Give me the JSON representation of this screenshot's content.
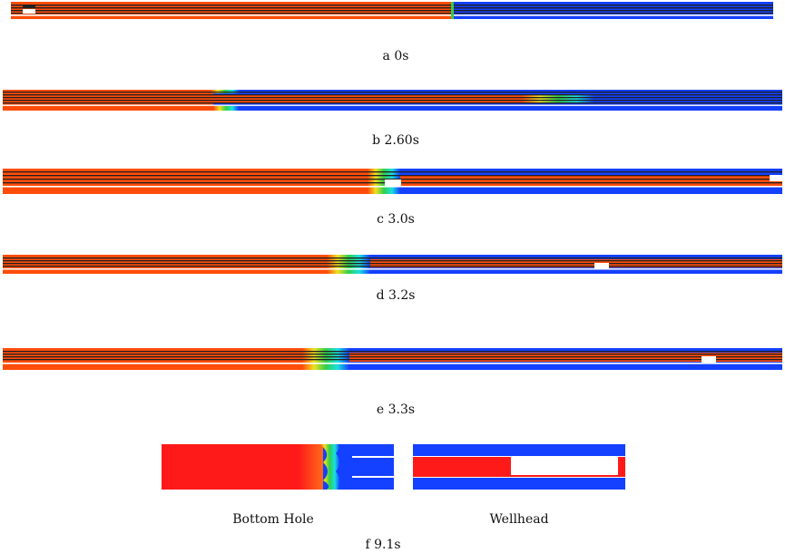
{
  "colors": {
    "hot": "#ff4c0a",
    "cold": "#1440ff",
    "red": "#ff1a1a",
    "dark": "#202020",
    "white": "#ffffff",
    "cyan": "#19e0e0",
    "green": "#2fd04a",
    "yellow": "#f0e020",
    "lightblue": "#3aa0ff"
  },
  "panels": [
    {
      "id": "a",
      "caption": "a 0s"
    },
    {
      "id": "b",
      "caption": "b 2.60s"
    },
    {
      "id": "c",
      "caption": "c 3.0s"
    },
    {
      "id": "d",
      "caption": "d 3.2s"
    },
    {
      "id": "e",
      "caption": "e 3.3s"
    }
  ],
  "detail": {
    "bottom_hole_label": "Bottom Hole",
    "wellhead_label": "Wellhead",
    "caption": "f 9.1s"
  }
}
